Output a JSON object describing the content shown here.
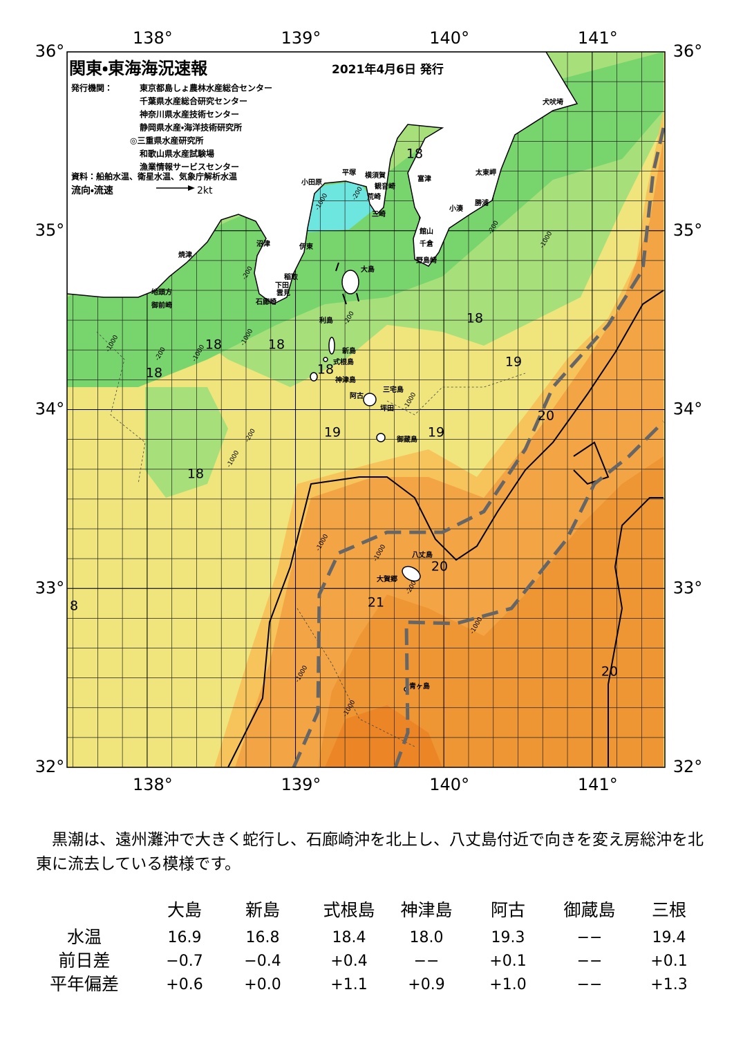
{
  "map": {
    "title": "関東・東海海況速報",
    "date": "2021年4月6日 発行",
    "issuer_label": "発行機関：",
    "issuers": [
      "東京都島しょ農林水産総合センター",
      "千葉県水産総合研究センター",
      "神奈川県水産技術センター",
      "静岡県水産・海洋技術研究所",
      "◎三重県水産研究所",
      "和歌山県水産試験場",
      "漁業情報サービスセンター"
    ],
    "source": "資料：船舶水温、衛星水温、気象庁解析水温",
    "legend": {
      "label": "流向・流速",
      "speed": "2kt"
    },
    "xlim": [
      137.46,
      141.49
    ],
    "ylim": [
      32,
      36
    ],
    "xticks": [
      {
        "value": 138,
        "label": "138°"
      },
      {
        "value": 139,
        "label": "139°"
      },
      {
        "value": 140,
        "label": "140°"
      },
      {
        "value": 141,
        "label": "141°"
      }
    ],
    "yticks": [
      {
        "value": 32,
        "label": "32°"
      },
      {
        "value": 33,
        "label": "33°"
      },
      {
        "value": 34,
        "label": "34°"
      },
      {
        "value": 35,
        "label": "35°"
      },
      {
        "value": 36,
        "label": "36°"
      }
    ],
    "temperature_labels": [
      18,
      18,
      18,
      18,
      18,
      18,
      19,
      20,
      19,
      19,
      18,
      20,
      21,
      20,
      8
    ],
    "places": [
      "犬吠埼",
      "太東岬",
      "勝浦",
      "小湊",
      "富津",
      "横須賀",
      "観音崎",
      "荒崎",
      "三崎",
      "館山",
      "千倉",
      "野島崎",
      "平塚",
      "小田原",
      "沼津",
      "伊東",
      "焼津",
      "稲取",
      "下田",
      "大島",
      "雲見",
      "石廊崎",
      "地頭方",
      "御前崎",
      "利島",
      "新島",
      "式根島",
      "神津島",
      "三宅島",
      "阿古",
      "坪田",
      "御蔵島",
      "八丈島",
      "大賀郷",
      "青ヶ島"
    ],
    "depth_labels": [
      "-1000",
      "-200",
      "-200",
      "-1000",
      "-200",
      "-200",
      "-1000",
      "-1000",
      "-200",
      "-1000",
      "-1000",
      "-200",
      "-1000",
      "-1000",
      "-1000",
      "-200",
      "-1000",
      "-1000",
      "-1000"
    ]
  },
  "summary": "黒潮は、遠州灘沖で大きく蛇行し、石廊崎沖を北上し、八丈島付近で向きを変え房総沖を北東に流去している模様です。",
  "table": {
    "columns": [
      "大島",
      "新島",
      "式根島",
      "神津島",
      "阿古",
      "御蔵島",
      "三根"
    ],
    "rows": [
      {
        "label": "水温",
        "values": [
          "16.9",
          "16.8",
          "18.4",
          "18.0",
          "19.3",
          "−−",
          "19.4"
        ]
      },
      {
        "label": "前日差",
        "values": [
          "−0.7",
          "−0.4",
          "+0.4",
          "−−",
          "+0.1",
          "−−",
          "+0.1"
        ]
      },
      {
        "label": "平年偏差",
        "values": [
          "+0.6",
          "+0.0",
          "+1.1",
          "+0.9",
          "+1.0",
          "−−",
          "+1.3"
        ]
      }
    ]
  }
}
